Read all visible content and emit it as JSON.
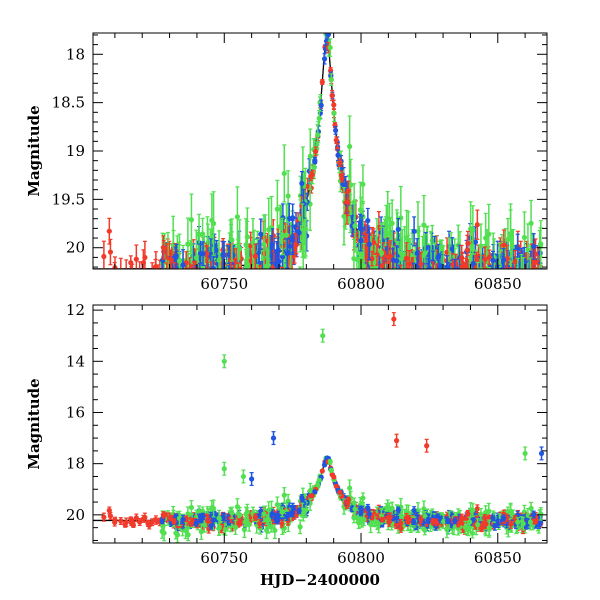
{
  "chart_data": [
    {
      "type": "scatter",
      "title": "",
      "xlabel": "",
      "ylabel": "Magnitude",
      "xlim": [
        60702,
        60868
      ],
      "ylim": [
        20.22,
        17.78
      ],
      "y_inverted": true,
      "xticks": [
        60750,
        60800,
        60850
      ],
      "yticks": [
        18,
        18.5,
        19,
        19.5,
        20
      ],
      "ytick_labels": [
        "18",
        "18.5",
        "19",
        "19.5",
        "20"
      ],
      "grid": false,
      "legend": null,
      "series_colors": {
        "blue": "#1f55e0",
        "green": "#52e052",
        "red": "#f23a2a"
      },
      "model_curve": {
        "t0": 60787.5,
        "u0": 0.11,
        "tE": 12.8,
        "baseline": 20.22,
        "color": "#000000"
      },
      "data_summary": {
        "x_range": [
          60705,
          60866
        ],
        "peak": {
          "x": 60787.5,
          "y": 17.98
        },
        "baseline_mag_range": [
          19.4,
          20.2
        ]
      }
    },
    {
      "type": "scatter",
      "title": "",
      "xlabel": "HJD−2400000",
      "ylabel": "Magnitude",
      "xlim": [
        60702,
        60868
      ],
      "ylim": [
        21.1,
        11.8
      ],
      "y_inverted": true,
      "xticks": [
        60750,
        60800,
        60850
      ],
      "yticks": [
        12,
        14,
        16,
        18,
        20
      ],
      "ytick_labels": [
        "12",
        "14",
        "16",
        "18",
        "20"
      ],
      "grid": false,
      "legend": null,
      "series_colors": {
        "blue": "#1f55e0",
        "green": "#52e052",
        "red": "#f23a2a"
      },
      "model_curve": {
        "t0": 60787.5,
        "u0": 0.11,
        "tE": 12.8,
        "baseline": 20.22,
        "color": "#000000"
      },
      "outliers": [
        {
          "series": "red",
          "x": 60812,
          "y": 12.35
        },
        {
          "series": "green",
          "x": 60750,
          "y": 14.0
        },
        {
          "series": "green",
          "x": 60786,
          "y": 13.0
        },
        {
          "series": "blue",
          "x": 60768,
          "y": 17.0
        },
        {
          "series": "red",
          "x": 60813,
          "y": 17.1
        },
        {
          "series": "red",
          "x": 60824,
          "y": 17.3
        },
        {
          "series": "blue",
          "x": 60866,
          "y": 17.6
        },
        {
          "series": "green",
          "x": 60860,
          "y": 17.6
        },
        {
          "series": "green",
          "x": 60750,
          "y": 18.2
        },
        {
          "series": "blue",
          "x": 60760,
          "y": 18.6
        },
        {
          "series": "green",
          "x": 60757,
          "y": 18.5
        }
      ]
    }
  ]
}
